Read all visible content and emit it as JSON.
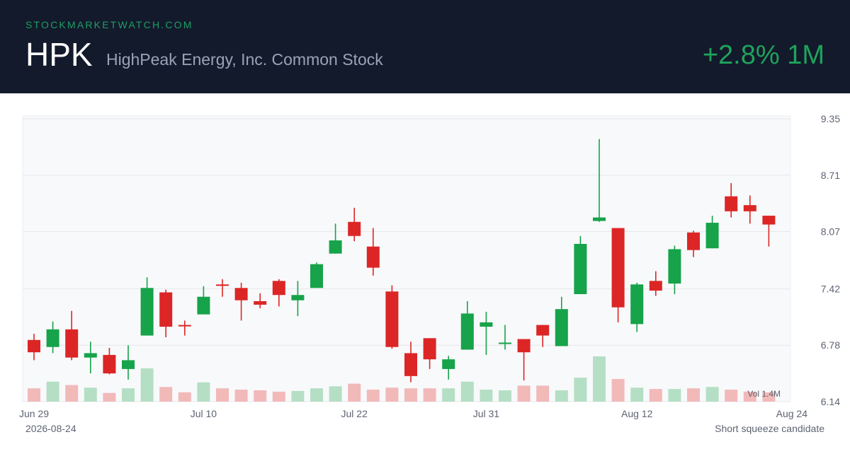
{
  "header": {
    "site": "STOCKMARKETWATCH.COM",
    "ticker": "HPK",
    "company": "HighPeak Energy, Inc. Common Stock",
    "change": "+2.8% 1M"
  },
  "footer": {
    "date": "2026-08-24",
    "note": "Short squeeze candidate"
  },
  "colors": {
    "up": "#16a34a",
    "down": "#dc2626",
    "header_bg": "#131a2c"
  },
  "chart_data": {
    "type": "candlestick",
    "y_ticks": [
      "9.35",
      "8.71",
      "8.07",
      "7.42",
      "6.78",
      "6.14"
    ],
    "ylim": [
      6.14,
      9.35
    ],
    "x_labels": [
      {
        "label": "Jun 29",
        "index": 0
      },
      {
        "label": "Jul 10",
        "index": 9
      },
      {
        "label": "Jul 22",
        "index": 17
      },
      {
        "label": "Jul 31",
        "index": 24
      },
      {
        "label": "Aug 12",
        "index": 32
      },
      {
        "label": "Aug 24",
        "index": 40
      }
    ],
    "volume_label": "Vol 1.4M",
    "grid": true,
    "candles": [
      {
        "o": 6.84,
        "h": 6.91,
        "l": 6.61,
        "c": 6.7
      },
      {
        "o": 6.76,
        "h": 7.05,
        "l": 6.69,
        "c": 6.96
      },
      {
        "o": 6.96,
        "h": 7.17,
        "l": 6.61,
        "c": 6.64
      },
      {
        "o": 6.64,
        "h": 6.82,
        "l": 6.46,
        "c": 6.69
      },
      {
        "o": 6.67,
        "h": 6.75,
        "l": 6.45,
        "c": 6.46
      },
      {
        "o": 6.51,
        "h": 6.78,
        "l": 6.39,
        "c": 6.61
      },
      {
        "o": 6.89,
        "h": 7.55,
        "l": 6.89,
        "c": 7.43
      },
      {
        "o": 7.38,
        "h": 7.41,
        "l": 6.87,
        "c": 6.99
      },
      {
        "o": 7.01,
        "h": 7.06,
        "l": 6.89,
        "c": 7.0
      },
      {
        "o": 7.13,
        "h": 7.45,
        "l": 7.13,
        "c": 7.33
      },
      {
        "o": 7.47,
        "h": 7.53,
        "l": 7.33,
        "c": 7.46
      },
      {
        "o": 7.43,
        "h": 7.49,
        "l": 7.06,
        "c": 7.29
      },
      {
        "o": 7.28,
        "h": 7.37,
        "l": 7.2,
        "c": 7.24
      },
      {
        "o": 7.51,
        "h": 7.53,
        "l": 7.22,
        "c": 7.35
      },
      {
        "o": 7.29,
        "h": 7.51,
        "l": 7.11,
        "c": 7.35
      },
      {
        "o": 7.43,
        "h": 7.72,
        "l": 7.43,
        "c": 7.7
      },
      {
        "o": 7.82,
        "h": 8.16,
        "l": 7.82,
        "c": 7.97
      },
      {
        "o": 8.18,
        "h": 8.34,
        "l": 7.96,
        "c": 8.02
      },
      {
        "o": 7.9,
        "h": 8.11,
        "l": 7.57,
        "c": 7.66
      },
      {
        "o": 7.39,
        "h": 7.46,
        "l": 6.74,
        "c": 6.76
      },
      {
        "o": 6.69,
        "h": 6.82,
        "l": 6.36,
        "c": 6.43
      },
      {
        "o": 6.86,
        "h": 6.86,
        "l": 6.51,
        "c": 6.62
      },
      {
        "o": 6.51,
        "h": 6.66,
        "l": 6.39,
        "c": 6.62
      },
      {
        "o": 6.73,
        "h": 7.28,
        "l": 6.73,
        "c": 7.14
      },
      {
        "o": 6.99,
        "h": 7.16,
        "l": 6.67,
        "c": 7.04
      },
      {
        "o": 6.81,
        "h": 7.01,
        "l": 6.73,
        "c": 6.81
      },
      {
        "o": 6.85,
        "h": 6.85,
        "l": 6.38,
        "c": 6.7
      },
      {
        "o": 7.01,
        "h": 7.01,
        "l": 6.76,
        "c": 6.89
      },
      {
        "o": 6.77,
        "h": 7.33,
        "l": 6.77,
        "c": 7.19
      },
      {
        "o": 7.36,
        "h": 8.02,
        "l": 7.36,
        "c": 7.93
      },
      {
        "o": 8.19,
        "h": 9.12,
        "l": 8.18,
        "c": 8.23
      },
      {
        "o": 8.11,
        "h": 8.11,
        "l": 7.04,
        "c": 7.21
      },
      {
        "o": 7.02,
        "h": 7.49,
        "l": 6.93,
        "c": 7.47
      },
      {
        "o": 7.51,
        "h": 7.62,
        "l": 7.34,
        "c": 7.4
      },
      {
        "o": 7.48,
        "h": 7.91,
        "l": 7.36,
        "c": 7.87
      },
      {
        "o": 8.06,
        "h": 8.08,
        "l": 7.78,
        "c": 7.86
      },
      {
        "o": 7.88,
        "h": 8.25,
        "l": 7.88,
        "c": 8.17
      },
      {
        "o": 8.47,
        "h": 8.62,
        "l": 8.23,
        "c": 8.3
      },
      {
        "o": 8.37,
        "h": 8.48,
        "l": 8.16,
        "c": 8.3
      },
      {
        "o": 8.25,
        "h": 8.25,
        "l": 7.9,
        "c": 8.15
      }
    ],
    "volumes": [
      0.4,
      0.6,
      0.5,
      0.42,
      0.26,
      0.4,
      1.0,
      0.44,
      0.28,
      0.58,
      0.4,
      0.36,
      0.34,
      0.3,
      0.32,
      0.4,
      0.46,
      0.54,
      0.36,
      0.42,
      0.4,
      0.4,
      0.4,
      0.6,
      0.36,
      0.34,
      0.48,
      0.48,
      0.34,
      0.72,
      1.36,
      0.68,
      0.42,
      0.38,
      0.38,
      0.4,
      0.44,
      0.36,
      0.3,
      0.28
    ]
  }
}
